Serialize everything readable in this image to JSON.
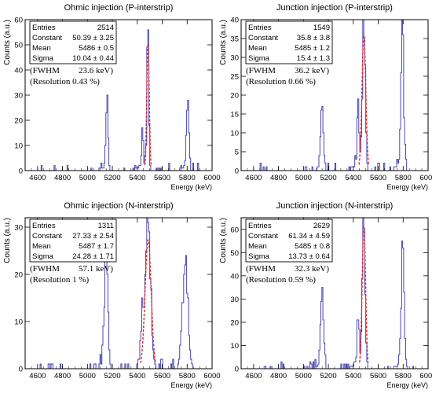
{
  "panels": [
    {
      "title": "Ohmic injection (P-interstrip)",
      "ylabel": "Counts (a.u.)",
      "xlabel": "Energy (keV)",
      "stats": [
        {
          "label": "Entries",
          "value": "2514"
        },
        {
          "label": "Constant",
          "value": "50.39 ± 3.25"
        },
        {
          "label": "Mean",
          "value": "5486 ± 0.5"
        },
        {
          "label": "Sigma",
          "value": "10.04 ± 0.44"
        }
      ],
      "fwhm_label": "(FWHM",
      "fwhm_value": "23.6 keV)",
      "resolution": "(Resolution 0.43 %)"
    },
    {
      "title": "Junction injection (P-interstrip)",
      "ylabel": "Counts (a.u.)",
      "xlabel": "Energy (keV)",
      "stats": [
        {
          "label": "Entries",
          "value": "1549"
        },
        {
          "label": "Constant",
          "value": "35.8 ± 3.8"
        },
        {
          "label": "Mean",
          "value": "5485 ± 1.2"
        },
        {
          "label": "Sigma",
          "value": "15.4 ± 1.3"
        }
      ],
      "fwhm_label": "(FWHM",
      "fwhm_value": "36.2 keV)",
      "resolution": "(Resolution 0.66 %)"
    },
    {
      "title": "Ohmic injection (N-interstrip)",
      "ylabel": "Counts (a.u.)",
      "xlabel": "Energy (keV)",
      "stats": [
        {
          "label": "Entries",
          "value": "1311"
        },
        {
          "label": "Constant",
          "value": "27.33 ± 2.54"
        },
        {
          "label": "Mean",
          "value": "5487 ± 1.7"
        },
        {
          "label": "Sigma",
          "value": "24.28 ± 1.71"
        }
      ],
      "fwhm_label": "(FWHM",
      "fwhm_value": "57.1 keV)",
      "resolution": "(Resolution 1 %)"
    },
    {
      "title": "Junction injection (N-interstrip)",
      "ylabel": "Counts (a.u.)",
      "xlabel": "Energy (keV)",
      "stats": [
        {
          "label": "Entries",
          "value": "2629"
        },
        {
          "label": "Constant",
          "value": "61.34 ± 4.59"
        },
        {
          "label": "Mean",
          "value": "5485 ± 0.8"
        },
        {
          "label": "Sigma",
          "value": "13.73 ± 0.64"
        }
      ],
      "fwhm_label": "(FWHM",
      "fwhm_value": "32.3 keV)",
      "resolution": "(Resolution 0.59 %)"
    }
  ],
  "chart_data": [
    {
      "type": "histogram",
      "title": "Ohmic injection (P-interstrip)",
      "xlabel": "Energy (keV)",
      "ylabel": "Counts (a.u.)",
      "xlim": [
        4500,
        6000
      ],
      "ylim": [
        0,
        60
      ],
      "x_ticks": [
        4600,
        4800,
        5000,
        5200,
        5400,
        5600,
        5800,
        6000
      ],
      "y_ticks": [
        0,
        10,
        20,
        30,
        40,
        50,
        60
      ],
      "grid": false,
      "histogram_color": "#3333aa",
      "fit_color": "#ee2222",
      "peaks": [
        {
          "center": 5157,
          "height": 32,
          "width": 8
        },
        {
          "center": 5443,
          "height": 14,
          "width": 6
        },
        {
          "center": 5486,
          "height": 58,
          "width": 7
        },
        {
          "center": 5805,
          "height": 32,
          "width": 9
        }
      ],
      "fit": {
        "constant": 50.39,
        "mean": 5486,
        "sigma": 10.04
      }
    },
    {
      "type": "histogram",
      "title": "Junction injection (P-interstrip)",
      "xlabel": "Energy (keV)",
      "ylabel": "Counts (a.u.)",
      "xlim": [
        4500,
        6000
      ],
      "ylim": [
        0,
        40
      ],
      "x_ticks": [
        4600,
        4800,
        5000,
        5200,
        5400,
        5600,
        5800,
        6000
      ],
      "y_ticks": [
        0,
        5,
        10,
        15,
        20,
        25,
        30,
        35,
        40
      ],
      "grid": false,
      "histogram_color": "#3333aa",
      "fit_color": "#ee2222",
      "peaks": [
        {
          "center": 5150,
          "height": 16,
          "width": 12
        },
        {
          "center": 5440,
          "height": 17,
          "width": 8
        },
        {
          "center": 5485,
          "height": 38,
          "width": 11
        },
        {
          "center": 5795,
          "height": 35,
          "width": 11
        }
      ],
      "fit": {
        "constant": 35.8,
        "mean": 5485,
        "sigma": 15.4
      }
    },
    {
      "type": "histogram",
      "title": "Ohmic injection (N-interstrip)",
      "xlabel": "Energy (keV)",
      "ylabel": "Counts (a.u.)",
      "xlim": [
        4500,
        6000
      ],
      "ylim": [
        0,
        32
      ],
      "x_ticks": [
        4600,
        4800,
        5000,
        5200,
        5400,
        5600,
        5800,
        6000
      ],
      "y_ticks": [
        0,
        10,
        20,
        30
      ],
      "grid": false,
      "histogram_color": "#3333aa",
      "fit_color": "#ee2222",
      "peaks": [
        {
          "center": 5150,
          "height": 21,
          "width": 15
        },
        {
          "center": 5440,
          "height": 10,
          "width": 12
        },
        {
          "center": 5487,
          "height": 30,
          "width": 20
        },
        {
          "center": 5785,
          "height": 24,
          "width": 20
        }
      ],
      "fit": {
        "constant": 27.33,
        "mean": 5487,
        "sigma": 24.28
      }
    },
    {
      "type": "histogram",
      "title": "Junction injection (N-interstrip)",
      "xlabel": "Energy (keV)",
      "ylabel": "Counts (a.u.)",
      "xlim": [
        4500,
        6000
      ],
      "ylim": [
        0,
        65
      ],
      "x_ticks": [
        4600,
        4800,
        5000,
        5200,
        5400,
        5600,
        5800,
        6000
      ],
      "y_ticks": [
        0,
        10,
        20,
        30,
        40,
        50,
        60
      ],
      "grid": false,
      "histogram_color": "#3333aa",
      "fit_color": "#ee2222",
      "peaks": [
        {
          "center": 5150,
          "height": 38,
          "width": 11
        },
        {
          "center": 5440,
          "height": 22,
          "width": 8
        },
        {
          "center": 5485,
          "height": 61,
          "width": 11
        },
        {
          "center": 5797,
          "height": 46,
          "width": 12
        }
      ],
      "fit": {
        "constant": 61.34,
        "mean": 5485,
        "sigma": 13.73
      }
    }
  ]
}
